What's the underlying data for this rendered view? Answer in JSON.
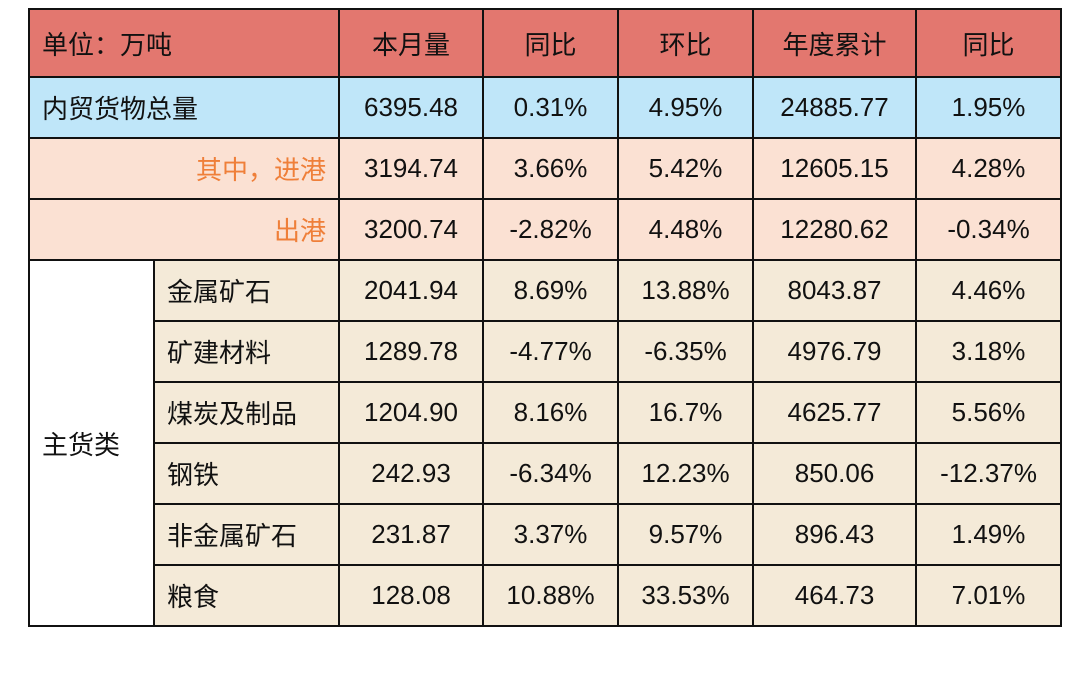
{
  "table": {
    "header": [
      "单位：万吨",
      "本月量",
      "同比",
      "环比",
      "年度累计",
      "同比"
    ],
    "total": {
      "label": "内贸货物总量",
      "values": [
        "6395.48",
        "0.31%",
        "4.95%",
        "24885.77",
        "1.95%"
      ]
    },
    "port_rows": [
      {
        "label": "其中，进港",
        "values": [
          "3194.74",
          "3.66%",
          "5.42%",
          "12605.15",
          "4.28%"
        ]
      },
      {
        "label": "出港",
        "values": [
          "3200.74",
          "-2.82%",
          "4.48%",
          "12280.62",
          "-0.34%"
        ]
      }
    ],
    "group": {
      "label": "主货类",
      "rows": [
        {
          "label": "金属矿石",
          "values": [
            "2041.94",
            "8.69%",
            "13.88%",
            "8043.87",
            "4.46%"
          ]
        },
        {
          "label": "矿建材料",
          "values": [
            "1289.78",
            "-4.77%",
            "-6.35%",
            "4976.79",
            "3.18%"
          ]
        },
        {
          "label": "煤炭及制品",
          "values": [
            "1204.90",
            "8.16%",
            "16.7%",
            "4625.77",
            "5.56%"
          ]
        },
        {
          "label": "钢铁",
          "values": [
            "242.93",
            "-6.34%",
            "12.23%",
            "850.06",
            "-12.37%"
          ]
        },
        {
          "label": "非金属矿石",
          "values": [
            "231.87",
            "3.37%",
            "9.57%",
            "896.43",
            "1.49%"
          ]
        },
        {
          "label": "粮食",
          "values": [
            "128.08",
            "10.88%",
            "33.53%",
            "464.73",
            "7.01%"
          ]
        }
      ]
    }
  }
}
